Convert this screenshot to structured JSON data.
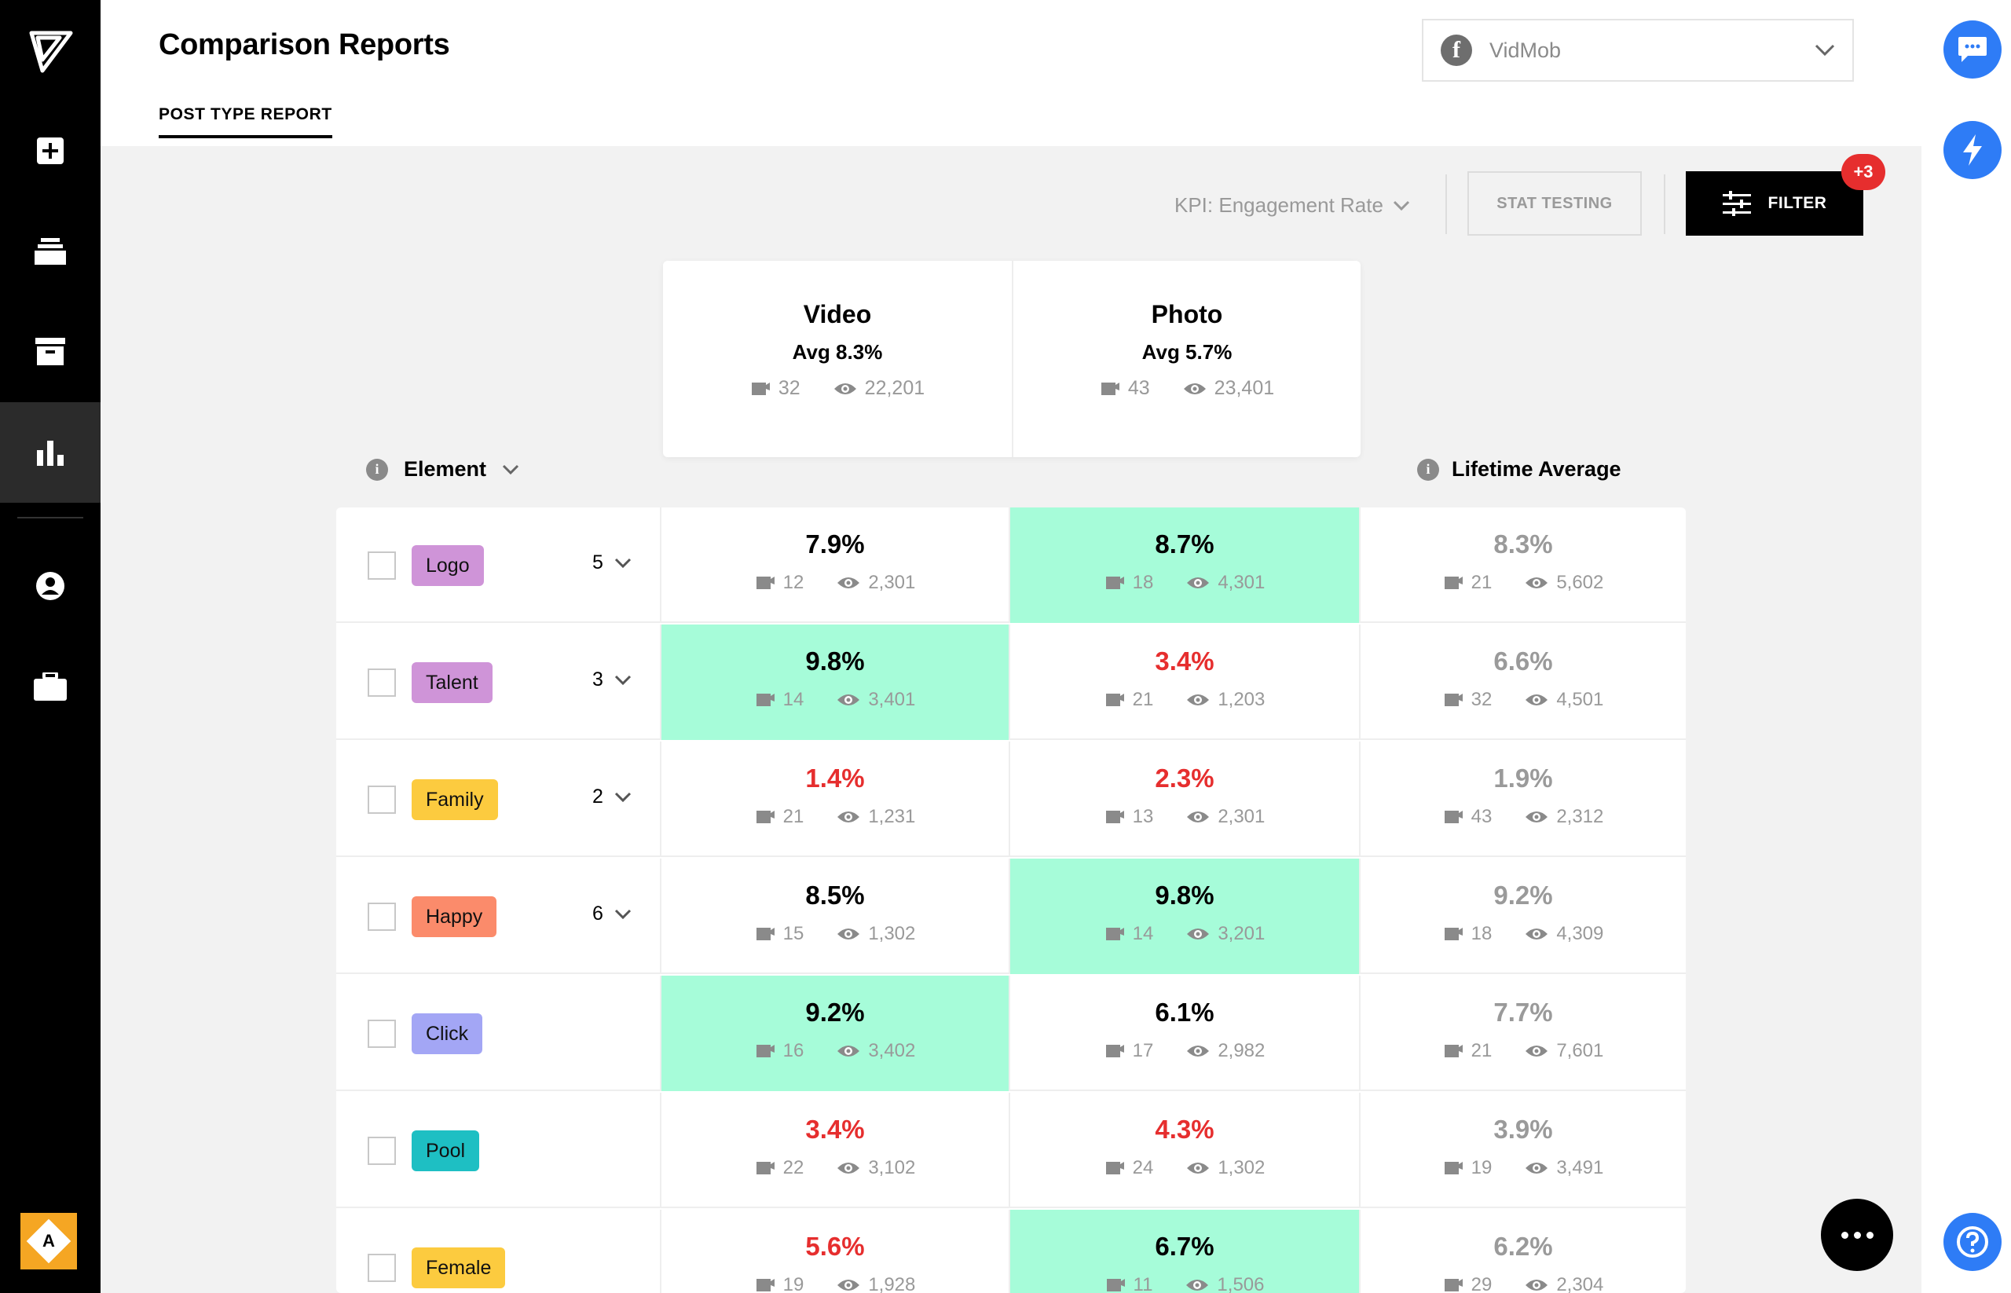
{
  "header": {
    "title": "Comparison Reports",
    "tab_label": "POST TYPE REPORT",
    "account": {
      "name": "VidMob",
      "platform": "facebook-icon"
    }
  },
  "sidebar": {
    "items": [
      {
        "icon": "add-project-icon",
        "active": false
      },
      {
        "icon": "layers-icon",
        "active": false
      },
      {
        "icon": "archive-icon",
        "active": false
      },
      {
        "icon": "bar-chart-icon",
        "active": true
      },
      {
        "icon": "user-icon",
        "active": false
      },
      {
        "icon": "briefcase-icon",
        "active": false
      }
    ],
    "avatar_letter": "A"
  },
  "toolbar": {
    "kpi_label": "KPI: Engagement Rate",
    "stat_testing_label": "STAT TESTING",
    "filter_label": "FILTER",
    "filter_badge": "+3"
  },
  "columns": [
    {
      "name": "Video",
      "avg_label": "Avg 8.3%",
      "posts": "32",
      "views": "22,201"
    },
    {
      "name": "Photo",
      "avg_label": "Avg  5.7%",
      "posts": "43",
      "views": "23,401"
    }
  ],
  "labels": {
    "element": "Element",
    "lifetime": "Lifetime Average"
  },
  "colors": {
    "highlight": "#a6fcd9",
    "negative": "#e62e2e",
    "accent_blue": "#2e7cf6"
  },
  "rows": [
    {
      "tag": "Logo",
      "tag_color": "#cf94d8",
      "count": "5",
      "video": {
        "pct": "7.9%",
        "posts": "12",
        "views": "2,301",
        "style": "normal"
      },
      "photo": {
        "pct": "8.7%",
        "posts": "18",
        "views": "4,301",
        "style": "highlight"
      },
      "lifetime": {
        "pct": "8.3%",
        "posts": "21",
        "views": "5,602"
      }
    },
    {
      "tag": "Talent",
      "tag_color": "#cf94d8",
      "count": "3",
      "video": {
        "pct": "9.8%",
        "posts": "14",
        "views": "3,401",
        "style": "highlight"
      },
      "photo": {
        "pct": "3.4%",
        "posts": "21",
        "views": "1,203",
        "style": "negative"
      },
      "lifetime": {
        "pct": "6.6%",
        "posts": "32",
        "views": "4,501"
      }
    },
    {
      "tag": "Family",
      "tag_color": "#fccb3f",
      "count": "2",
      "video": {
        "pct": "1.4%",
        "posts": "21",
        "views": "1,231",
        "style": "negative"
      },
      "photo": {
        "pct": "2.3%",
        "posts": "13",
        "views": "2,301",
        "style": "negative"
      },
      "lifetime": {
        "pct": "1.9%",
        "posts": "43",
        "views": "2,312"
      }
    },
    {
      "tag": "Happy",
      "tag_color": "#fb8b6b",
      "count": "6",
      "video": {
        "pct": "8.5%",
        "posts": "15",
        "views": "1,302",
        "style": "normal"
      },
      "photo": {
        "pct": "9.8%",
        "posts": "14",
        "views": "3,201",
        "style": "highlight"
      },
      "lifetime": {
        "pct": "9.2%",
        "posts": "18",
        "views": "4,309"
      }
    },
    {
      "tag": "Click",
      "tag_color": "#a3a6f5",
      "count": "",
      "video": {
        "pct": "9.2%",
        "posts": "16",
        "views": "3,402",
        "style": "highlight"
      },
      "photo": {
        "pct": "6.1%",
        "posts": "17",
        "views": "2,982",
        "style": "normal"
      },
      "lifetime": {
        "pct": "7.7%",
        "posts": "21",
        "views": "7,601"
      }
    },
    {
      "tag": "Pool",
      "tag_color": "#1ebfc3",
      "count": "",
      "video": {
        "pct": "3.4%",
        "posts": "22",
        "views": "3,102",
        "style": "negative"
      },
      "photo": {
        "pct": "4.3%",
        "posts": "24",
        "views": "1,302",
        "style": "negative"
      },
      "lifetime": {
        "pct": "3.9%",
        "posts": "19",
        "views": "3,491"
      }
    },
    {
      "tag": "Female",
      "tag_color": "#fccb3f",
      "count": "",
      "video": {
        "pct": "5.6%",
        "posts": "19",
        "views": "1,928",
        "style": "negative"
      },
      "photo": {
        "pct": "6.7%",
        "posts": "11",
        "views": "1,506",
        "style": "highlight"
      },
      "lifetime": {
        "pct": "6.2%",
        "posts": "29",
        "views": "2,304"
      }
    }
  ]
}
